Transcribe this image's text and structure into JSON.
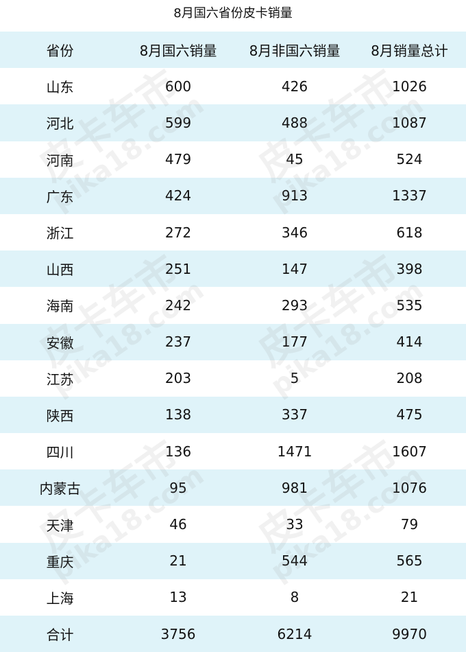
{
  "title": "8月国六省份皮卡销量",
  "headers": [
    "省份",
    "8月国六销量",
    "8月非国六销量",
    "8月销量总计"
  ],
  "rows": [
    [
      "山东",
      "600",
      "426",
      "1026"
    ],
    [
      "河北",
      "599",
      "488",
      "1087"
    ],
    [
      "河南",
      "479",
      "45",
      "524"
    ],
    [
      "广东",
      "424",
      "913",
      "1337"
    ],
    [
      "浙江",
      "272",
      "346",
      "618"
    ],
    [
      "山西",
      "251",
      "147",
      "398"
    ],
    [
      "海南",
      "242",
      "293",
      "535"
    ],
    [
      "安徽",
      "237",
      "177",
      "414"
    ],
    [
      "江苏",
      "203",
      "5",
      "208"
    ],
    [
      "陕西",
      "138",
      "337",
      "475"
    ],
    [
      "四川",
      "136",
      "1471",
      "1607"
    ],
    [
      "内蒙古",
      "95",
      "981",
      "1076"
    ],
    [
      "天津",
      "46",
      "33",
      "79"
    ],
    [
      "重庆",
      "21",
      "544",
      "565"
    ],
    [
      "上海",
      "13",
      "8",
      "21"
    ]
  ],
  "total": [
    "合计",
    "3756",
    "6214",
    "9970"
  ],
  "watermark": {
    "line1": "皮卡车市",
    "line2": "pika18.com"
  },
  "colors": {
    "stripe": "#dff3f9"
  }
}
